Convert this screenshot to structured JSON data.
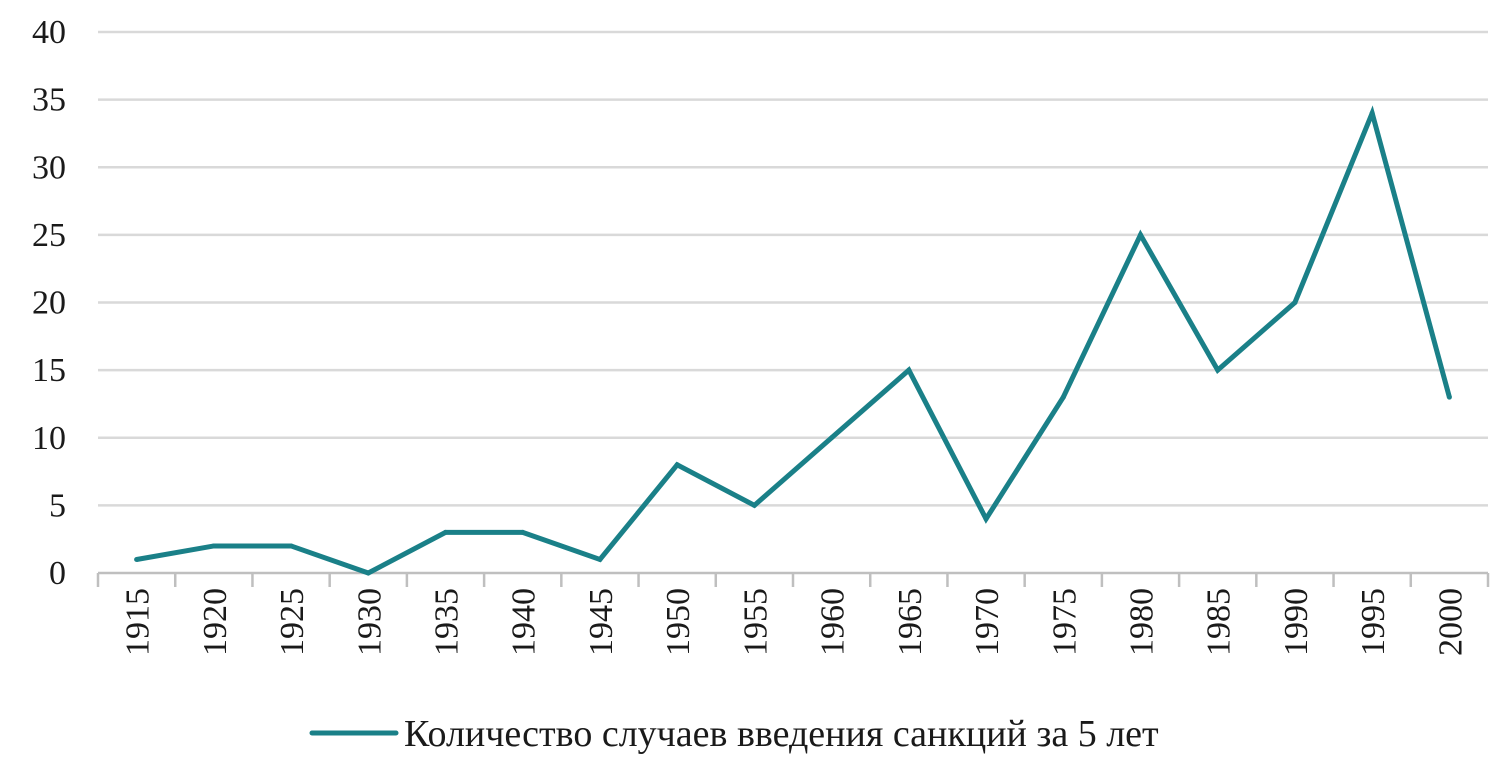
{
  "chart_data": {
    "type": "line",
    "title": "",
    "xlabel": "",
    "ylabel": "",
    "categories": [
      "1915",
      "1920",
      "1925",
      "1930",
      "1935",
      "1940",
      "1945",
      "1950",
      "1955",
      "1960",
      "1965",
      "1970",
      "1975",
      "1980",
      "1985",
      "1990",
      "1995",
      "2000"
    ],
    "series": [
      {
        "name": "Количество случаев введения санкций за 5 лет",
        "values": [
          1,
          2,
          2,
          0,
          3,
          3,
          1,
          8,
          5,
          10,
          15,
          4,
          13,
          25,
          15,
          20,
          34,
          13
        ],
        "color": "#1a8088"
      }
    ],
    "ylim": [
      0,
      40
    ],
    "yticks": [
      "0",
      "5",
      "10",
      "15",
      "20",
      "25",
      "30",
      "35",
      "40"
    ],
    "grid": true,
    "gridline_color": "#d9d9d9",
    "legend_position": "bottom"
  }
}
